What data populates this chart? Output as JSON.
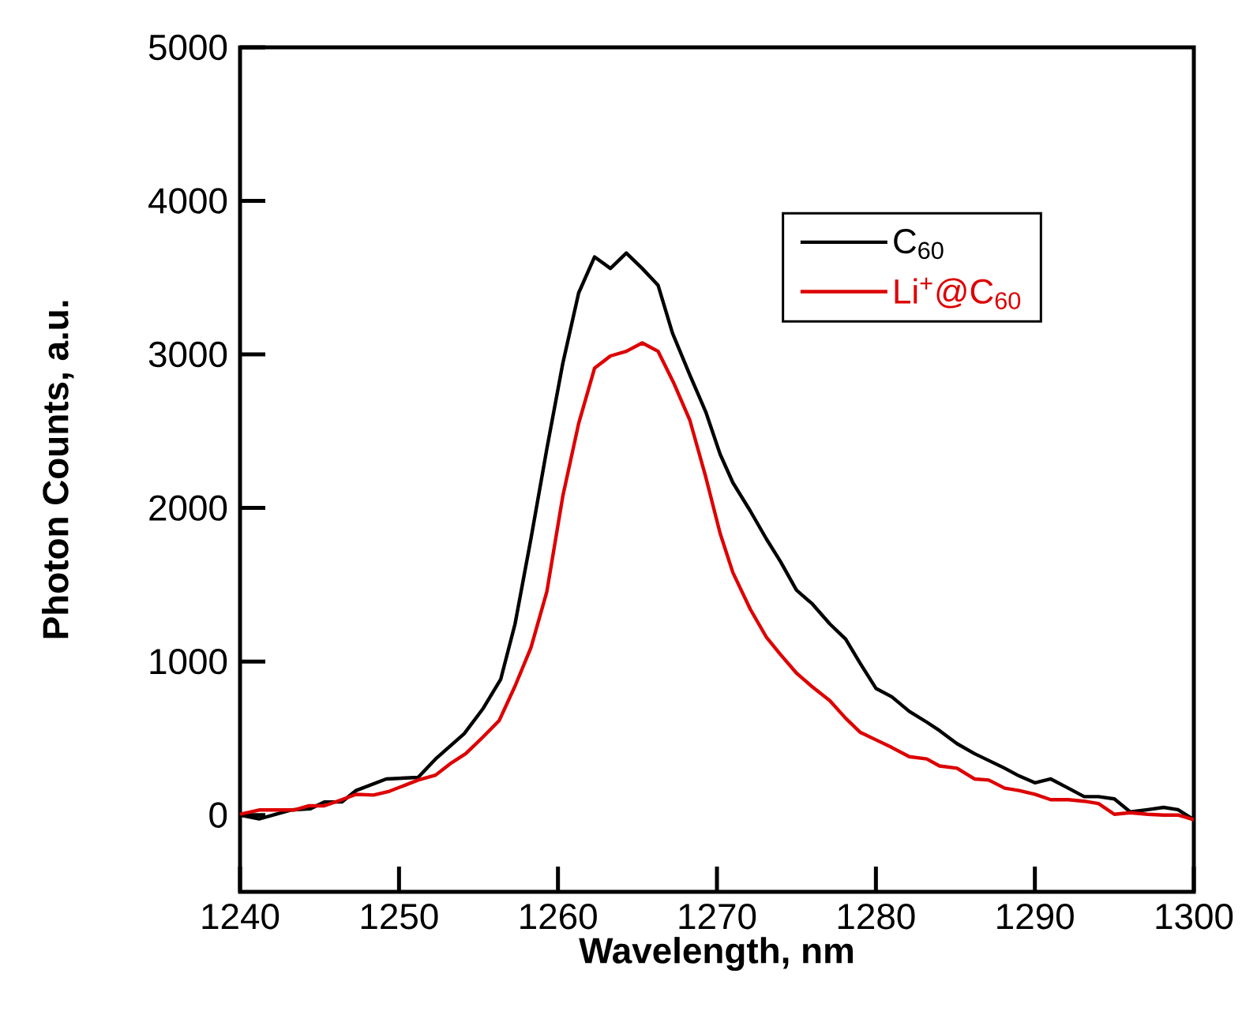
{
  "chart_data": {
    "type": "line",
    "xlabel": "Wavelength, nm",
    "ylabel": "Photon Counts, a.u.",
    "xlim": [
      1240,
      1300
    ],
    "ylim": [
      -500,
      5000
    ],
    "xticks": [
      1240,
      1250,
      1260,
      1270,
      1280,
      1290,
      1300
    ],
    "yticks": [
      0,
      1000,
      2000,
      3000,
      4000,
      5000
    ],
    "legend": "top right",
    "series": [
      {
        "name": "C$_{60}$",
        "color": "#000000",
        "x": [
          1240,
          1241.2,
          1243.2,
          1244.4,
          1245.3,
          1246.4,
          1247.3,
          1249.2,
          1251.2,
          1252.3,
          1254.1,
          1255.3,
          1256.4,
          1257.3,
          1258.3,
          1259.3,
          1260.3,
          1261.3,
          1262.3,
          1263.3,
          1264.3,
          1265.3,
          1266.3,
          1267.2,
          1268.3,
          1269.3,
          1270.2,
          1271,
          1272.1,
          1273.1,
          1274,
          1275,
          1276,
          1277.1,
          1278.1,
          1279,
          1280,
          1281,
          1282.1,
          1283.2,
          1284,
          1285.1,
          1286.2,
          1287.1,
          1288.1,
          1289,
          1290,
          1291,
          1292.1,
          1293.1,
          1294,
          1295,
          1296,
          1297.1,
          1298.1,
          1299,
          1300
        ],
        "values": [
          0,
          -25,
          33,
          40,
          85,
          85,
          160,
          235,
          245,
          365,
          530,
          695,
          885,
          1245,
          1800,
          2385,
          2940,
          3400,
          3635,
          3560,
          3660,
          3560,
          3450,
          3140,
          2865,
          2625,
          2350,
          2165,
          1980,
          1800,
          1650,
          1465,
          1375,
          1245,
          1145,
          990,
          825,
          770,
          675,
          605,
          550,
          465,
          400,
          355,
          305,
          255,
          210,
          235,
          175,
          120,
          120,
          105,
          20,
          35,
          50,
          35,
          -30
        ]
      },
      {
        "name": "Li$^{+}$@C$_{60}$",
        "color": "#dd0000",
        "x": [
          1240,
          1241.2,
          1243.4,
          1244.3,
          1245.3,
          1246.4,
          1247.3,
          1248.4,
          1249.4,
          1251.2,
          1252.3,
          1253.3,
          1254.2,
          1255.3,
          1256.3,
          1257.3,
          1258.3,
          1259.3,
          1260.3,
          1261.3,
          1262.3,
          1263.3,
          1264.3,
          1265.3,
          1266.3,
          1267.3,
          1268.3,
          1269.3,
          1270.2,
          1271,
          1272.1,
          1273.1,
          1274,
          1275,
          1276,
          1277.1,
          1278.1,
          1279,
          1280,
          1281,
          1282.1,
          1283.2,
          1284,
          1285.1,
          1286.2,
          1287.1,
          1288.1,
          1289,
          1290,
          1291,
          1292.1,
          1293.1,
          1294,
          1295,
          1296,
          1297.1,
          1298.1,
          1299,
          1300
        ],
        "values": [
          5,
          33,
          33,
          60,
          60,
          100,
          135,
          130,
          155,
          228,
          260,
          340,
          400,
          510,
          615,
          840,
          1090,
          1455,
          2075,
          2550,
          2910,
          2990,
          3020,
          3075,
          3020,
          2810,
          2570,
          2200,
          1835,
          1580,
          1340,
          1160,
          1045,
          925,
          835,
          745,
          630,
          540,
          490,
          440,
          380,
          365,
          320,
          305,
          235,
          228,
          175,
          160,
          135,
          100,
          100,
          90,
          75,
          5,
          15,
          5,
          0,
          0,
          -30
        ]
      }
    ]
  }
}
